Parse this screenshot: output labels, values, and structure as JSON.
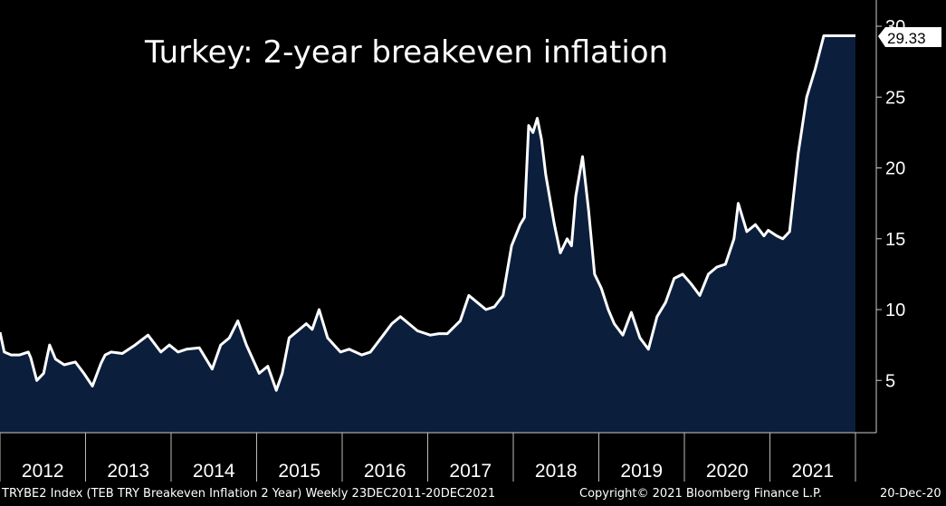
{
  "title": "Turkey: 2-year breakeven inflation",
  "footer": {
    "security": "TRYBE2 Index (TEB TRY Breakeven Inflation 2 Year)  Weekly 23DEC2011-20DEC2021",
    "copyright": "Copyright© 2021 Bloomberg Finance L.P.",
    "date": "20-Dec-20"
  },
  "colors": {
    "background": "#000000",
    "line": "#ffffff",
    "fill": "#0b1e3c"
  },
  "chart_data": {
    "type": "area",
    "title": "Turkey: 2-year breakeven inflation",
    "xlabel": "",
    "ylabel": "",
    "xlim": [
      2011.97,
      2021.97
    ],
    "ylim": [
      2,
      30
    ],
    "yticks": [
      5,
      10,
      15,
      20,
      25,
      30
    ],
    "ytick_labels": [
      "5",
      "10",
      "15",
      "20",
      "25",
      "30"
    ],
    "xtick_labels": [
      "2012",
      "2013",
      "2014",
      "2015",
      "2016",
      "2017",
      "2018",
      "2019",
      "2020",
      "2021"
    ],
    "last_value_label": "29.33",
    "grid": false,
    "y_axis_position": "right",
    "series": [
      {
        "x": [
          2011.97,
          2012.02,
          2012.1,
          2012.2,
          2012.3,
          2012.33,
          2012.4,
          2012.48,
          2012.55,
          2012.62,
          2012.72,
          2012.85,
          2012.95,
          2013.05,
          2013.15,
          2013.2,
          2013.27,
          2013.4,
          2013.55,
          2013.7,
          2013.85,
          2013.95,
          2014.05,
          2014.15,
          2014.3,
          2014.45,
          2014.55,
          2014.65,
          2014.75,
          2014.85,
          2015.0,
          2015.1,
          2015.2,
          2015.27,
          2015.35,
          2015.45,
          2015.55,
          2015.62,
          2015.7,
          2015.8,
          2015.95,
          2016.05,
          2016.2,
          2016.3,
          2016.45,
          2016.55,
          2016.65,
          2016.75,
          2016.85,
          2017.0,
          2017.1,
          2017.2,
          2017.35,
          2017.45,
          2017.55,
          2017.65,
          2017.75,
          2017.85,
          2017.95,
          2018.05,
          2018.1,
          2018.15,
          2018.2,
          2018.25,
          2018.3,
          2018.35,
          2018.45,
          2018.52,
          2018.6,
          2018.65,
          2018.7,
          2018.78,
          2018.85,
          2018.92,
          2019.0,
          2019.08,
          2019.15,
          2019.25,
          2019.35,
          2019.45,
          2019.55,
          2019.65,
          2019.75,
          2019.85,
          2019.95,
          2020.05,
          2020.15,
          2020.25,
          2020.35,
          2020.45,
          2020.55,
          2020.6,
          2020.7,
          2020.8,
          2020.9,
          2020.95,
          2021.05,
          2021.12,
          2021.2,
          2021.3,
          2021.4,
          2021.5,
          2021.6,
          2021.7,
          2021.75,
          2021.8,
          2021.85,
          2021.92,
          2021.97
        ],
        "y": [
          8.4,
          7.0,
          6.8,
          6.8,
          7.0,
          6.6,
          5.0,
          5.5,
          7.5,
          6.5,
          6.1,
          6.3,
          5.5,
          4.6,
          6.2,
          6.8,
          7.0,
          6.9,
          7.5,
          8.2,
          7.0,
          7.5,
          7.0,
          7.2,
          7.3,
          5.8,
          7.5,
          8.0,
          9.2,
          7.5,
          5.5,
          6.0,
          4.3,
          5.5,
          8.0,
          8.5,
          9.0,
          8.6,
          10.0,
          8.0,
          7.0,
          7.2,
          6.8,
          7.0,
          8.2,
          9.0,
          9.5,
          9.0,
          8.5,
          8.2,
          8.3,
          8.3,
          9.2,
          11.0,
          10.5,
          10.0,
          10.2,
          11.0,
          14.5,
          16.0,
          16.5,
          23.0,
          22.5,
          23.5,
          22.0,
          19.5,
          16.0,
          14.0,
          15.0,
          14.5,
          18.0,
          20.8,
          17.0,
          12.5,
          11.5,
          10.0,
          9.0,
          8.2,
          9.8,
          8.0,
          7.2,
          9.5,
          10.5,
          12.2,
          12.5,
          11.8,
          11.0,
          12.5,
          13.0,
          13.2,
          15.0,
          17.5,
          15.5,
          16.0,
          15.2,
          15.6,
          15.2,
          15.0,
          15.5,
          21.0,
          25.0,
          27.0,
          29.33,
          29.33,
          29.33,
          29.33,
          29.33,
          29.33,
          29.33
        ]
      }
    ]
  }
}
